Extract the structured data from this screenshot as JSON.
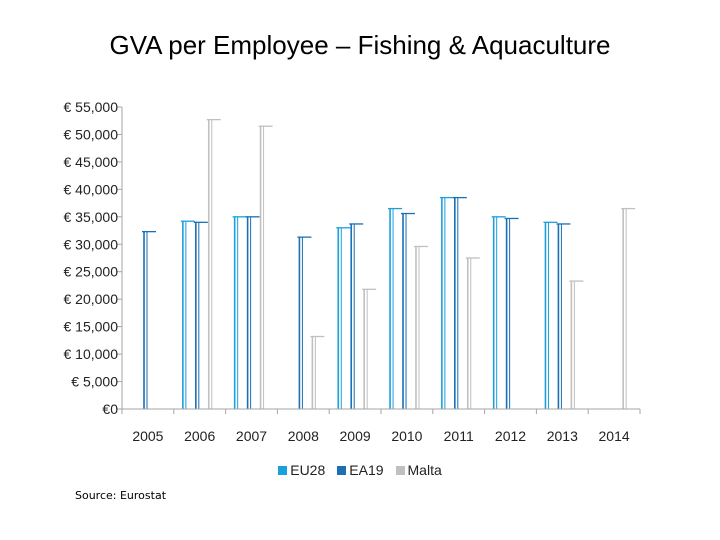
{
  "chart_data": {
    "type": "bar",
    "title": "GVA per Employee – Fishing & Aquaculture",
    "categories": [
      "2005",
      "2006",
      "2007",
      "2008",
      "2009",
      "2010",
      "2011",
      "2012",
      "2013",
      "2014"
    ],
    "ylim": [
      0,
      55000
    ],
    "y_ticks": [
      0,
      5000,
      10000,
      15000,
      20000,
      25000,
      30000,
      35000,
      40000,
      45000,
      50000,
      55000
    ],
    "y_tick_labels": [
      "€0",
      "€ 5,000",
      "€ 10,000",
      "€ 15,000",
      "€ 20,000",
      "€ 25,000",
      "€ 30,000",
      "€ 35,000",
      "€ 40,000",
      "€ 45,000",
      "€ 50,000",
      "€ 55,000"
    ],
    "series": [
      {
        "name": "EU28",
        "color": "#1aa0dc",
        "values": [
          null,
          34200,
          35000,
          null,
          33000,
          36500,
          38500,
          35000,
          34000,
          null
        ]
      },
      {
        "name": "EA19",
        "color": "#1a6fb5",
        "values": [
          32300,
          34000,
          35000,
          31300,
          33700,
          35600,
          38500,
          34700,
          33700,
          null
        ]
      },
      {
        "name": "Malta",
        "color": "#c0c0c0",
        "values": [
          null,
          52700,
          51500,
          13200,
          21800,
          29600,
          27500,
          null,
          23300,
          36500
        ]
      }
    ],
    "legend_position": "bottom",
    "source_note": "Source: Eurostat"
  }
}
